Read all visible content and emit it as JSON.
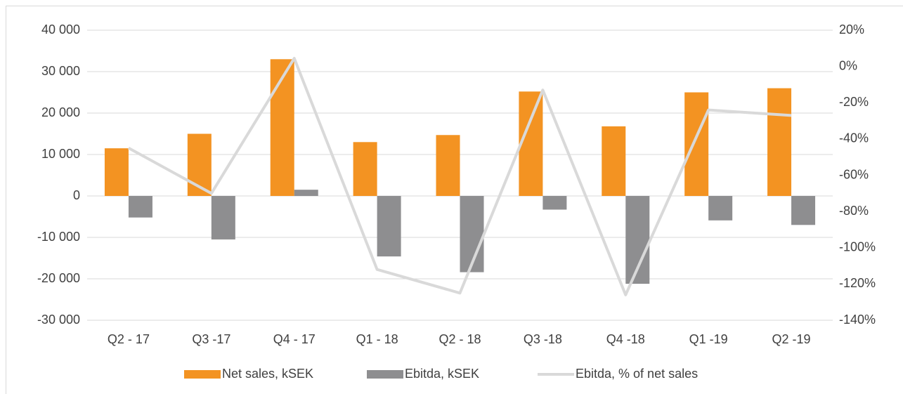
{
  "chart_data": {
    "type": "bar",
    "categories": [
      "Q2 - 17",
      "Q3 -17",
      "Q4 - 17",
      "Q1 - 18",
      "Q2 - 18",
      "Q3 -18",
      "Q4 -18",
      "Q1 -19",
      "Q2 -19"
    ],
    "series": [
      {
        "name": "Net sales, kSEK",
        "color": "#f39322",
        "type": "bar",
        "values": [
          11500,
          15000,
          33000,
          13000,
          14700,
          25200,
          16800,
          25000,
          26000
        ]
      },
      {
        "name": "Ebitda, kSEK",
        "color": "#8e8e90",
        "type": "bar",
        "values": [
          -5200,
          -10500,
          1500,
          -14600,
          -18400,
          -3300,
          -21200,
          -5900,
          -7000
        ]
      },
      {
        "name": "Ebitda, % of net sales",
        "color": "#d9d9d9",
        "type": "line",
        "axis": "y2",
        "values": [
          -45,
          -70,
          4.5,
          -112,
          -125,
          -13,
          -126,
          -24,
          -27
        ]
      }
    ],
    "ylim": [
      -30000,
      40000
    ],
    "yticks": [
      {
        "value": -30000,
        "label": "-30 000"
      },
      {
        "value": -20000,
        "label": "-20 000"
      },
      {
        "value": -10000,
        "label": "-10 000"
      },
      0,
      {
        "value": 10000,
        "label": "10 000"
      },
      {
        "value": 20000,
        "label": "20 000"
      },
      {
        "value": 30000,
        "label": "30 000"
      },
      {
        "value": 40000,
        "label": "40 000"
      }
    ],
    "y2lim": [
      -140,
      20
    ],
    "y2ticks": [
      {
        "value": -140,
        "label": "-140%"
      },
      {
        "value": -120,
        "label": "-120%"
      },
      {
        "value": -100,
        "label": "-100%"
      },
      {
        "value": -80,
        "label": "-80%"
      },
      {
        "value": -60,
        "label": "-60%"
      },
      {
        "value": -40,
        "label": "-40%"
      },
      {
        "value": -20,
        "label": "-20%"
      },
      {
        "value": 0,
        "label": "0%"
      },
      {
        "value": 20,
        "label": "20%"
      }
    ],
    "grid": true,
    "legend": "bottom"
  }
}
